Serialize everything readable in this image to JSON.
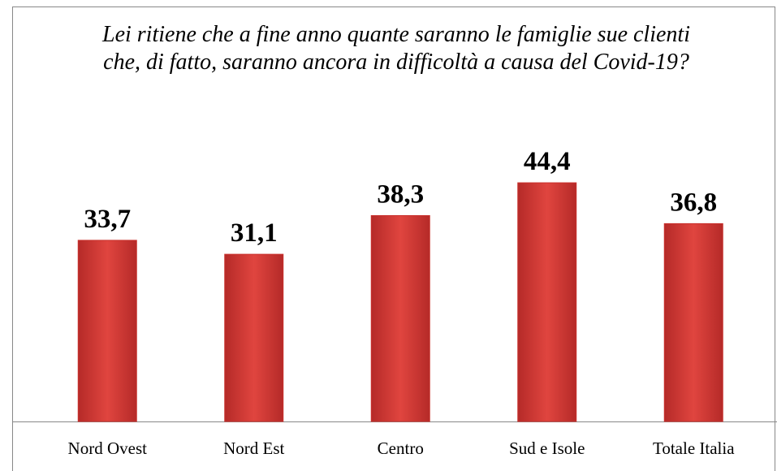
{
  "chart_data": {
    "type": "bar",
    "title": "Lei ritiene che a fine anno quante saranno le famiglie sue clienti che, di fatto, saranno ancora in difficoltà a causa del Covid-19?",
    "categories": [
      "Nord Ovest",
      "Nord Est",
      "Centro",
      "Sud e Isole",
      "Totale Italia"
    ],
    "values": [
      33.7,
      31.1,
      38.3,
      44.4,
      36.8
    ],
    "value_labels": [
      "33,7",
      "31,1",
      "38,3",
      "44,4",
      "36,8"
    ],
    "color": "#c9302c"
  }
}
